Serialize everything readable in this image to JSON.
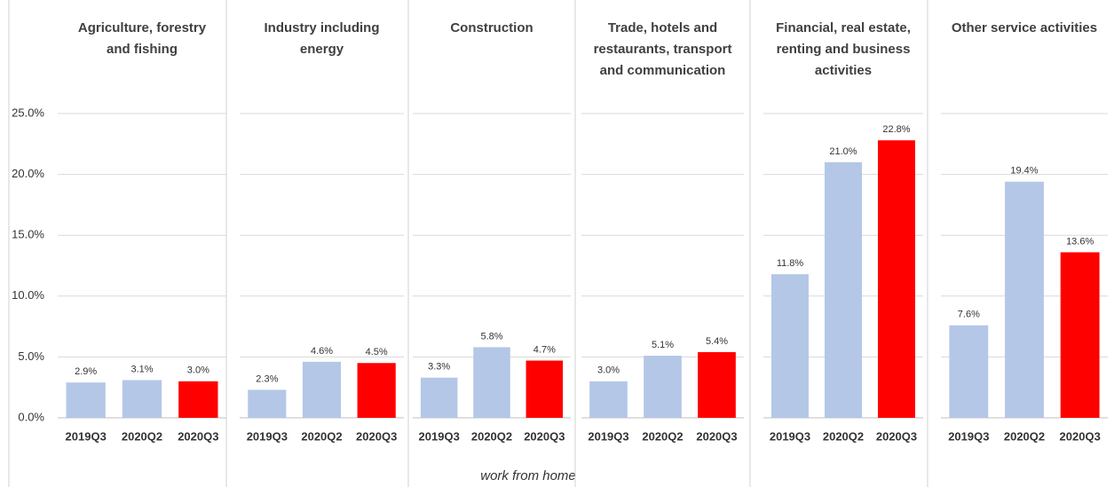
{
  "chart_data": [
    {
      "type": "bar",
      "title": "Agriculture, forestry and fishing",
      "categories": [
        "2019Q3",
        "2020Q2",
        "2020Q3"
      ],
      "values": [
        2.9,
        3.1,
        3.0
      ],
      "value_labels": [
        "2.9%",
        "3.1%",
        "3.0%"
      ],
      "colors": [
        "#b4c7e7",
        "#b4c7e7",
        "#ff0000"
      ],
      "ylim": [
        0,
        25
      ],
      "yticks": [
        {
          "value": 0,
          "label": "0.0%"
        },
        {
          "value": 5,
          "label": "5.0%"
        },
        {
          "value": 10,
          "label": "10.0%"
        },
        {
          "value": 15,
          "label": "15.0%"
        },
        {
          "value": 20,
          "label": "20.0%"
        },
        {
          "value": 25,
          "label": "25.0%"
        }
      ],
      "grid": true
    },
    {
      "type": "bar",
      "title": "Industry including energy",
      "categories": [
        "2019Q3",
        "2020Q2",
        "2020Q3"
      ],
      "values": [
        2.3,
        4.6,
        4.5
      ],
      "value_labels": [
        "2.3%",
        "4.6%",
        "4.5%"
      ],
      "colors": [
        "#b4c7e7",
        "#b4c7e7",
        "#ff0000"
      ],
      "ylim": [
        0,
        25
      ],
      "grid": true
    },
    {
      "type": "bar",
      "title": "Construction",
      "categories": [
        "2019Q3",
        "2020Q2",
        "2020Q3"
      ],
      "values": [
        3.3,
        5.8,
        4.7
      ],
      "value_labels": [
        "3.3%",
        "5.8%",
        "4.7%"
      ],
      "colors": [
        "#b4c7e7",
        "#b4c7e7",
        "#ff0000"
      ],
      "ylim": [
        0,
        25
      ],
      "grid": true
    },
    {
      "type": "bar",
      "title": "Trade, hotels and restaurants, transport and communication",
      "categories": [
        "2019Q3",
        "2020Q2",
        "2020Q3"
      ],
      "values": [
        3.0,
        5.1,
        5.4
      ],
      "value_labels": [
        "3.0%",
        "5.1%",
        "5.4%"
      ],
      "colors": [
        "#b4c7e7",
        "#b4c7e7",
        "#ff0000"
      ],
      "ylim": [
        0,
        25
      ],
      "grid": true
    },
    {
      "type": "bar",
      "title": "Financial, real estate, renting and business activities",
      "categories": [
        "2019Q3",
        "2020Q2",
        "2020Q3"
      ],
      "values": [
        11.8,
        21.0,
        22.8
      ],
      "value_labels": [
        "11.8%",
        "21.0%",
        "22.8%"
      ],
      "colors": [
        "#b4c7e7",
        "#b4c7e7",
        "#ff0000"
      ],
      "ylim": [
        0,
        25
      ],
      "grid": true
    },
    {
      "type": "bar",
      "title": "Other service activities",
      "categories": [
        "2019Q3",
        "2020Q2",
        "2020Q3"
      ],
      "values": [
        7.6,
        19.4,
        13.6
      ],
      "value_labels": [
        "7.6%",
        "19.4%",
        "13.6%"
      ],
      "colors": [
        "#b4c7e7",
        "#b4c7e7",
        "#ff0000"
      ],
      "ylim": [
        0,
        25
      ],
      "grid": true
    }
  ],
  "xlabel": "work from home"
}
